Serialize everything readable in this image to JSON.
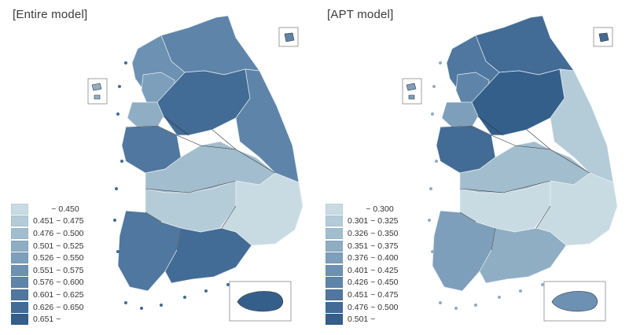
{
  "panels": [
    {
      "title": "[Entire model]",
      "legend": [
        {
          "label": "        ~ 0.450",
          "color": "#c8dbe3"
        },
        {
          "label": "0.451 ~ 0.475",
          "color": "#b4cbd8"
        },
        {
          "label": "0.476 ~ 0.500",
          "color": "#a2bdcd"
        },
        {
          "label": "0.501 ~ 0.525",
          "color": "#8fadc3"
        },
        {
          "label": "0.526 ~ 0.550",
          "color": "#7d9fbb"
        },
        {
          "label": "0.551 ~ 0.575",
          "color": "#6d91b2"
        },
        {
          "label": "0.576 ~ 0.600",
          "color": "#5e84a9"
        },
        {
          "label": "0.601 ~ 0.625",
          "color": "#4f779f"
        },
        {
          "label": "0.626 ~ 0.650",
          "color": "#426b95"
        },
        {
          "label": "0.651 ~",
          "color": "#345f8b"
        }
      ]
    },
    {
      "title": "[APT model]",
      "legend": [
        {
          "label": "        ~ 0.300",
          "color": "#c8dbe3"
        },
        {
          "label": "0.301 ~ 0.325",
          "color": "#b4cbd8"
        },
        {
          "label": "0.326 ~ 0.350",
          "color": "#a2bdcd"
        },
        {
          "label": "0.351 ~ 0.375",
          "color": "#8fadc3"
        },
        {
          "label": "0.376 ~ 0.400",
          "color": "#7d9fbb"
        },
        {
          "label": "0.401 ~ 0.425",
          "color": "#6d91b2"
        },
        {
          "label": "0.426 ~ 0.450",
          "color": "#5e84a9"
        },
        {
          "label": "0.451 ~ 0.475",
          "color": "#4f779f"
        },
        {
          "label": "0.476 ~ 0.500",
          "color": "#426b95"
        },
        {
          "label": "0.501 ~",
          "color": "#345f8b"
        }
      ]
    }
  ],
  "map_regions": {
    "entire": {
      "north": "#5e84a9",
      "northwest": "#6d91b2",
      "capital": "#7d9fbb",
      "west_coast": "#8fadc3",
      "central_west": "#4f779f",
      "central": "#426b95",
      "east": "#5e84a9",
      "central_band": "#a2bdcd",
      "south_central": "#b4cbd8",
      "southeast": "#c8dbe3",
      "southwest": "#4f779f",
      "south": "#426b95",
      "jeju": "#345f8b"
    },
    "apt": {
      "north": "#426b95",
      "northwest": "#4f779f",
      "capital": "#5e84a9",
      "west_coast": "#7d9fbb",
      "central_west": "#426b95",
      "central": "#345f8b",
      "east": "#b4cbd8",
      "central_band": "#a2bdcd",
      "south_central": "#c8dbe3",
      "southeast": "#c8dbe3",
      "southwest": "#7d9fbb",
      "south": "#8fadc3",
      "jeju": "#6d91b2"
    }
  }
}
